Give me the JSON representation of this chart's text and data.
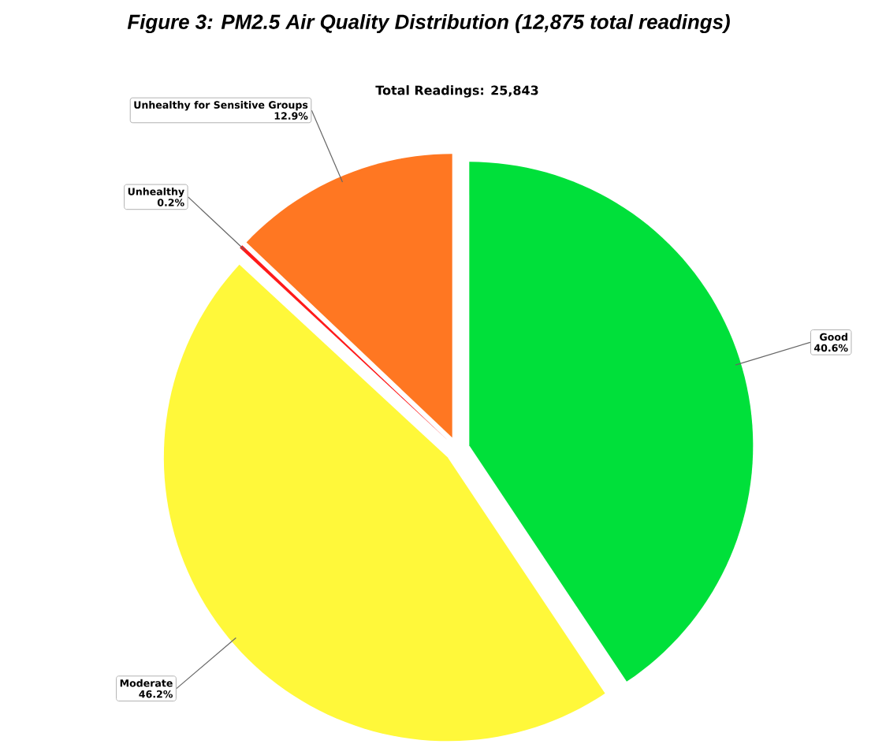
{
  "chart_data": {
    "type": "pie",
    "title": "Figure 3: PM2.5 Air Quality Distribution (12,875 total readings)",
    "annotations": [
      "Total Readings: 25,843"
    ],
    "categories": [
      "Good",
      "Moderate",
      "Unhealthy",
      "Unhealthy for Sensitive Groups"
    ],
    "values": [
      40.6,
      46.2,
      0.2,
      12.9
    ],
    "value_labels": [
      "40.6%",
      "46.2%",
      "0.2%",
      "12.9%"
    ],
    "colors": [
      "#00e03a",
      "#fff83a",
      "#ff1a1a",
      "#ff7722"
    ]
  }
}
